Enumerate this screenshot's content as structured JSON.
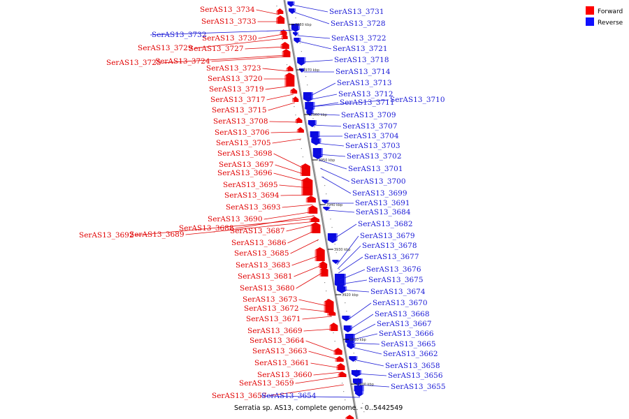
{
  "legend": {
    "items": [
      {
        "label": "Forward",
        "color": "#ff0000"
      },
      {
        "label": "Reverse",
        "color": "#1010ff"
      }
    ]
  },
  "caption": "Serratia sp. AS13, complete genome. - 0..5442549",
  "ticks": [
    "3980 kbp",
    "3970 kbp",
    "3960 kbp",
    "3950 kbp",
    "3940 kbp",
    "3930 kbp",
    "3920 kbp",
    "3910 kbp",
    "3900 kbp"
  ],
  "forward_labels": [
    "SerAS13_3734",
    "SerAS13_3733",
    "SerAS13_3730",
    "SerAS13_3729",
    "SerAS13_3727",
    "SerAS13_3725",
    "SerAS13_3724",
    "SerAS13_3723",
    "SerAS13_3720",
    "SerAS13_3719",
    "SerAS13_3717",
    "SerAS13_3715",
    "SerAS13_3708",
    "SerAS13_3706",
    "SerAS13_3705",
    "SerAS13_3698",
    "SerAS13_3697",
    "SerAS13_3696",
    "SerAS13_3695",
    "SerAS13_3694",
    "SerAS13_3693",
    "SerAS13_3690",
    "SerAS13_3688",
    "SerAS13_3692",
    "SerAS13_3689",
    "SerAS13_3687",
    "SerAS13_3686",
    "SerAS13_3685",
    "SerAS13_3683",
    "SerAS13_3681",
    "SerAS13_3680",
    "SerAS13_3673",
    "SerAS13_3672",
    "SerAS13_3671",
    "SerAS13_3669",
    "SerAS13_3664",
    "SerAS13_3663",
    "SerAS13_3661",
    "SerAS13_3660",
    "SerAS13_3659",
    "SerAS13_3657"
  ],
  "reverse_labels": [
    "SerAS13_3731",
    "SerAS13_3728",
    "SerAS13_3732",
    "SerAS13_3722",
    "SerAS13_3721",
    "SerAS13_3718",
    "SerAS13_3714",
    "SerAS13_3713",
    "SerAS13_3712",
    "SerAS13_3711",
    "SerAS13_3710",
    "SerAS13_3709",
    "SerAS13_3707",
    "SerAS13_3704",
    "SerAS13_3703",
    "SerAS13_3702",
    "SerAS13_3701",
    "SerAS13_3700",
    "SerAS13_3699",
    "SerAS13_3691",
    "SerAS13_3684",
    "SerAS13_3682",
    "SerAS13_3679",
    "SerAS13_3678",
    "SerAS13_3677",
    "SerAS13_3676",
    "SerAS13_3675",
    "SerAS13_3674",
    "SerAS13_3670",
    "SerAS13_3668",
    "SerAS13_3667",
    "SerAS13_3666",
    "SerAS13_3665",
    "SerAS13_3662",
    "SerAS13_3658",
    "SerAS13_3656",
    "SerAS13_3655",
    "SerAS13_3654"
  ]
}
